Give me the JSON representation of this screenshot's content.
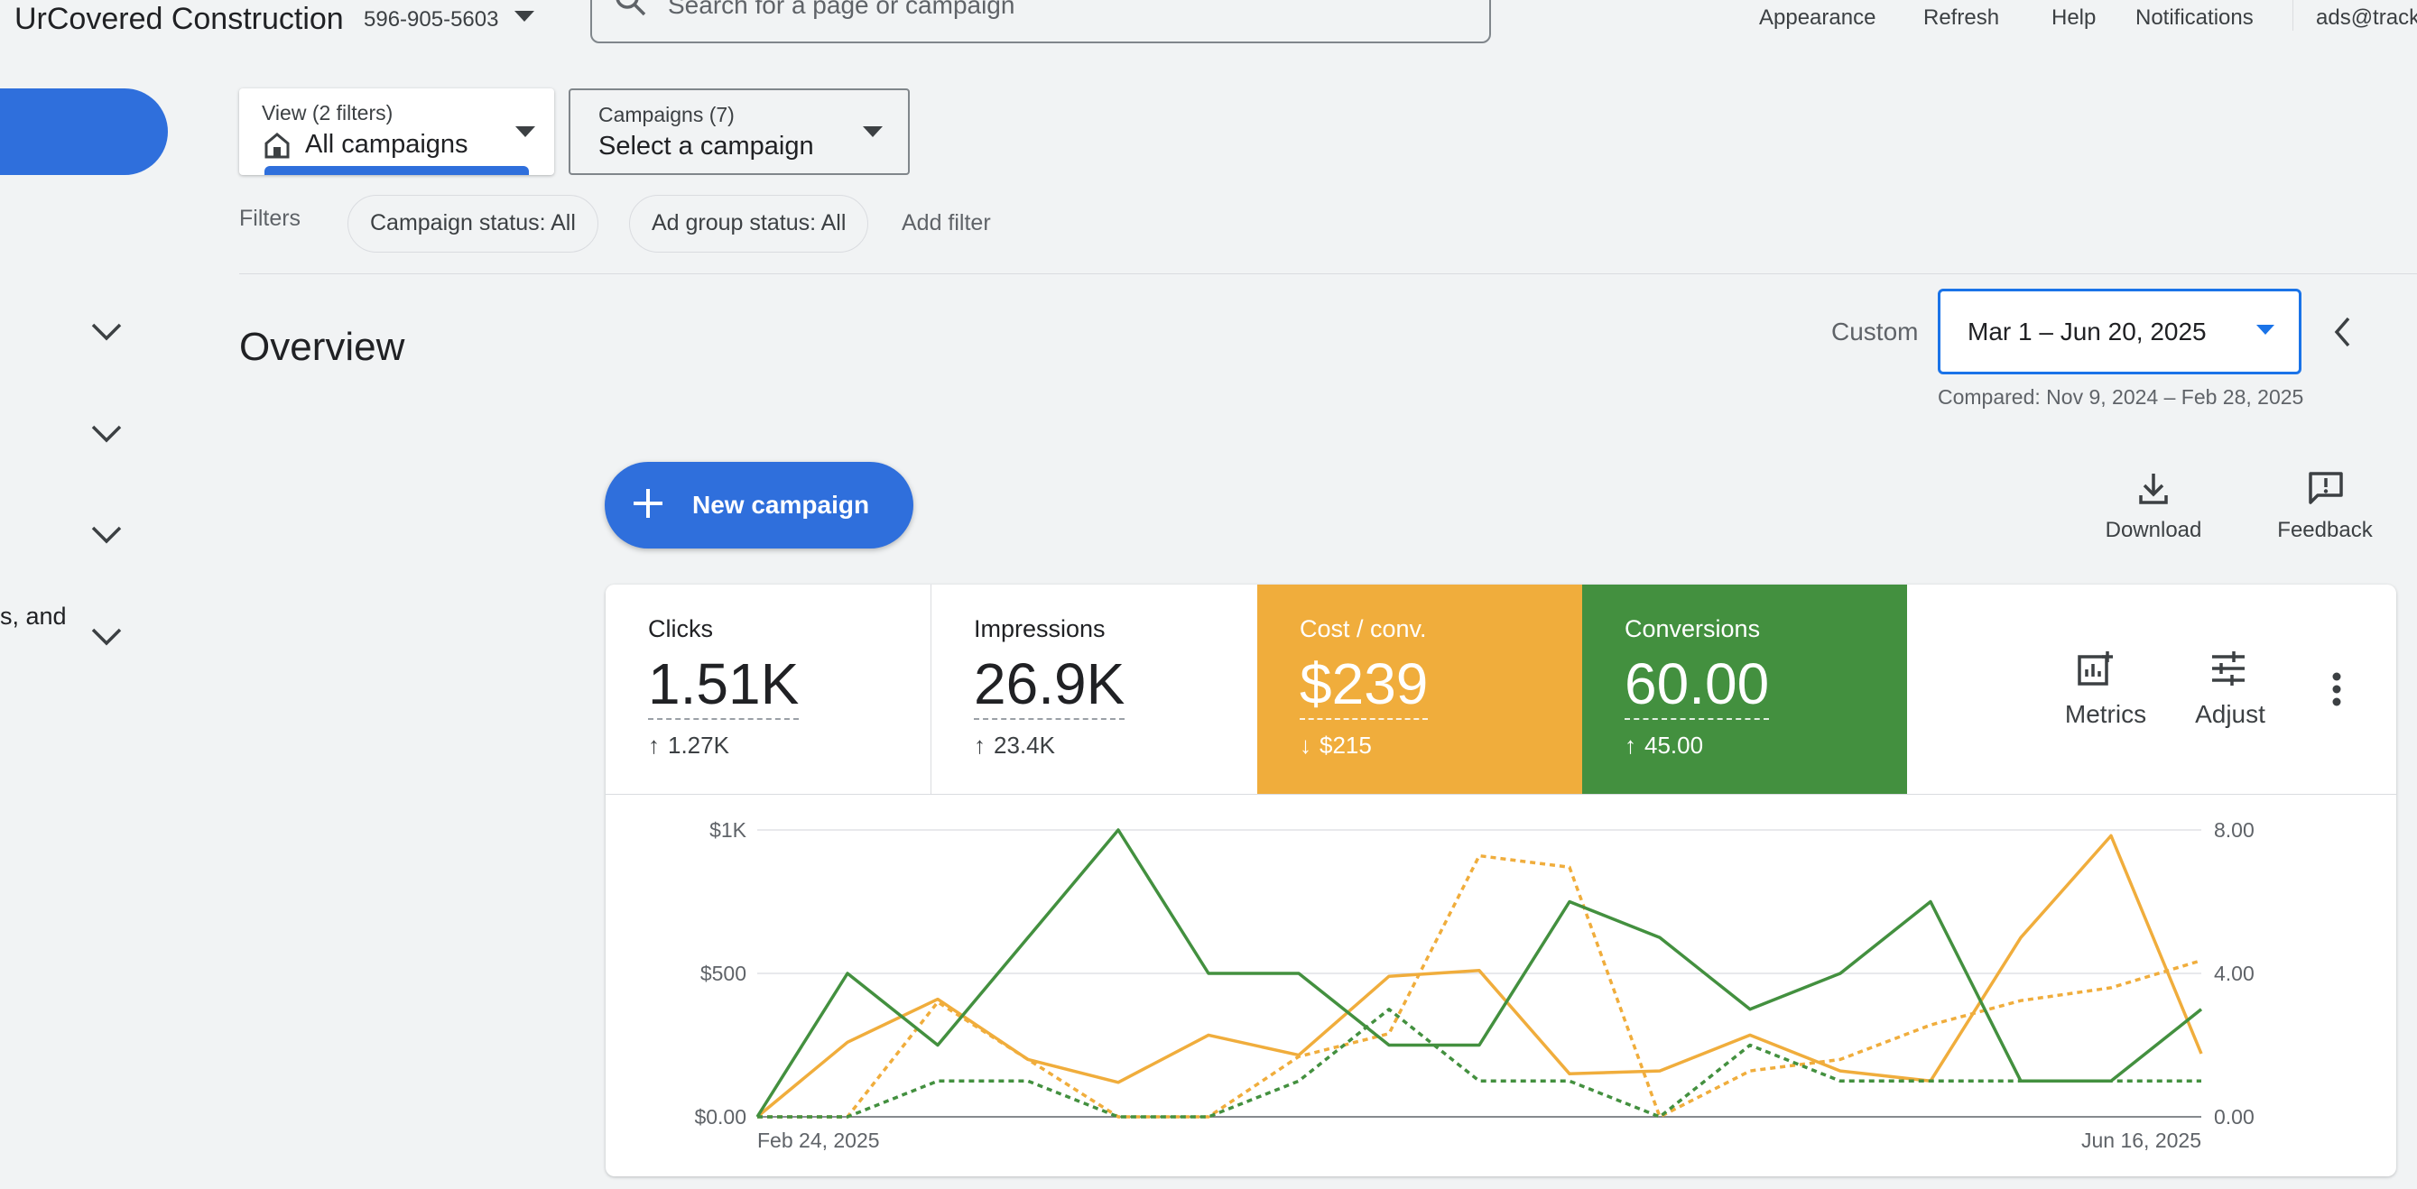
{
  "account": {
    "name": "UrCovered Construction",
    "id": "596-905-5603"
  },
  "search": {
    "placeholder": "Search for a page or campaign"
  },
  "top_links": [
    {
      "label": "Appearance"
    },
    {
      "label": "Refresh"
    },
    {
      "label": "Help"
    },
    {
      "label": "Notifications"
    },
    {
      "label": "ads@track"
    }
  ],
  "nav": {
    "partial_text": "s, and"
  },
  "view_selector": {
    "sub": "View (2 filters)",
    "main": "All campaigns"
  },
  "campaign_selector": {
    "sub": "Campaigns (7)",
    "main": "Select a campaign"
  },
  "filters": {
    "label": "Filters",
    "chips": [
      "Campaign status: All",
      "Ad group status: All"
    ],
    "add": "Add filter"
  },
  "overview": {
    "title": "Overview",
    "date_mode": "Custom",
    "date_range": "Mar 1 – Jun 20, 2025",
    "compared": "Compared: Nov 9, 2024 – Feb 28, 2025",
    "new_campaign": "New campaign",
    "download": "Download",
    "feedback": "Feedback"
  },
  "scorecards": [
    {
      "label": "Clicks",
      "value": "1.51K",
      "delta": "1.27K",
      "direction": "up",
      "bg": "#ffffff",
      "fg": "#202124",
      "delta_fg": "#3c4043"
    },
    {
      "label": "Impressions",
      "value": "26.9K",
      "delta": "23.4K",
      "direction": "up",
      "bg": "#ffffff",
      "fg": "#202124",
      "delta_fg": "#3c4043"
    },
    {
      "label": "Cost / conv.",
      "value": "$239",
      "delta": "$215",
      "direction": "down",
      "bg": "#f0ad3c",
      "fg": "#ffffff",
      "delta_fg": "#ffffff"
    },
    {
      "label": "Conversions",
      "value": "60.00",
      "delta": "45.00",
      "direction": "up",
      "bg": "#43903f",
      "fg": "#ffffff",
      "delta_fg": "#ffffff"
    }
  ],
  "tools": {
    "metrics": "Metrics",
    "adjust": "Adjust"
  },
  "chart_data": {
    "type": "line",
    "x_start": "Feb 24, 2025",
    "x_end": "Jun 16, 2025",
    "left_axis": {
      "ticks": [
        "$0.00",
        "$500",
        "$1K"
      ],
      "min": 0,
      "max": 1000
    },
    "right_axis": {
      "ticks": [
        "0.00",
        "4.00",
        "8.00"
      ],
      "min": 0,
      "max": 8
    },
    "series": [
      {
        "axis": "left",
        "style": "solid",
        "color": "#f0ad3c",
        "values": [
          0,
          260,
          410,
          200,
          120,
          285,
          215,
          490,
          510,
          150,
          160,
          285,
          160,
          125,
          625,
          980,
          220
        ]
      },
      {
        "axis": "left",
        "style": "dashed",
        "color": "#f0ad3c",
        "values": [
          0,
          0,
          400,
          200,
          0,
          0,
          210,
          290,
          910,
          870,
          0,
          160,
          200,
          320,
          405,
          450,
          545
        ]
      },
      {
        "axis": "right",
        "style": "solid",
        "color": "#43903f",
        "values": [
          0,
          4.0,
          2.0,
          5.0,
          8.0,
          4.0,
          4.0,
          2.0,
          2.0,
          6.0,
          5.0,
          3.0,
          4.0,
          6.0,
          1.0,
          1.0,
          3.0
        ]
      },
      {
        "axis": "right",
        "style": "dashed",
        "color": "#43903f",
        "values": [
          0,
          0,
          1.0,
          1.0,
          0,
          0,
          1.0,
          3.0,
          1.0,
          1.0,
          0,
          2.0,
          1.0,
          1.0,
          1.0,
          1.0,
          1.0
        ]
      }
    ]
  }
}
